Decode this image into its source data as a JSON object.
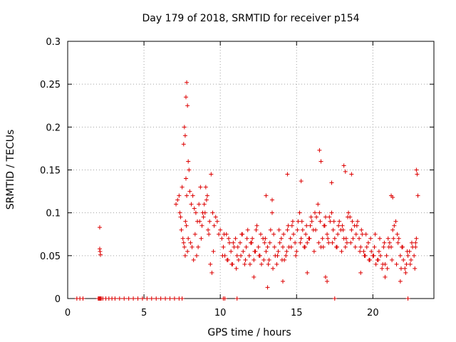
{
  "chart_data": {
    "type": "scatter",
    "title": "Day 179 of 2018, SRMTID for receiver p154",
    "xlabel": "GPS time / hours",
    "ylabel": "SRMTID / TECUs",
    "xlim": [
      0,
      24
    ],
    "ylim": [
      0,
      0.3
    ],
    "x_ticks": [
      0,
      5,
      10,
      15,
      20
    ],
    "x_tick_labels": [
      "0",
      "5",
      "10",
      "15",
      "20"
    ],
    "y_ticks": [
      0,
      0.05,
      0.1,
      0.15,
      0.2,
      0.25,
      0.3
    ],
    "y_tick_labels": [
      "0",
      "0.05",
      "0.1",
      "0.15",
      "0.2",
      "0.25",
      "0.3"
    ],
    "grid": true,
    "marker": "+",
    "color": "#dd0000",
    "series": [
      {
        "name": "SRMTID",
        "x": [
          0.6,
          0.8,
          1.0,
          2.0,
          2.05,
          2.1,
          2.15,
          2.2,
          2.3,
          2.5,
          2.7,
          2.9,
          3.1,
          3.4,
          3.7,
          4.0,
          4.3,
          4.6,
          4.9,
          5.2,
          5.5,
          5.8,
          6.1,
          6.4,
          6.7,
          7.0,
          7.3,
          7.5,
          10.2,
          10.3,
          11.1,
          17.5,
          22.3,
          2.1,
          2.1,
          2.12,
          2.15,
          7.1,
          7.2,
          7.3,
          7.4,
          7.5,
          7.6,
          7.65,
          7.7,
          7.75,
          7.8,
          7.85,
          7.9,
          7.95,
          8.0,
          8.1,
          8.2,
          8.3,
          8.4,
          8.5,
          8.6,
          8.7,
          8.8,
          8.9,
          9.0,
          9.1,
          9.2,
          9.3,
          9.4,
          9.5,
          9.6,
          9.7,
          9.8,
          9.9,
          10.0,
          7.35,
          7.45,
          7.55,
          7.6,
          7.65,
          7.7,
          7.72,
          7.75,
          7.78,
          7.8,
          7.85,
          7.9,
          8.05,
          8.15,
          8.25,
          8.35,
          8.45,
          8.55,
          8.65,
          8.75,
          8.85,
          8.95,
          9.05,
          9.15,
          9.25,
          9.35,
          9.45,
          9.55,
          10.1,
          10.2,
          10.3,
          10.4,
          10.5,
          10.6,
          10.7,
          10.8,
          10.9,
          11.0,
          11.1,
          11.2,
          11.3,
          11.4,
          11.5,
          11.6,
          11.7,
          11.8,
          11.9,
          12.0,
          12.1,
          12.2,
          12.3,
          12.4,
          12.5,
          12.6,
          12.7,
          12.8,
          12.9,
          13.0,
          13.1,
          13.2,
          13.3,
          13.4,
          13.5,
          13.6,
          13.7,
          13.8,
          13.9,
          14.0,
          14.1,
          14.2,
          14.3,
          14.4,
          14.5,
          14.6,
          14.7,
          14.8,
          14.9,
          15.0,
          15.1,
          15.2,
          15.3,
          15.4,
          15.5,
          15.6,
          15.7,
          15.8,
          15.9,
          16.0,
          16.1,
          16.2,
          16.3,
          16.4,
          16.5,
          16.6,
          16.7,
          16.8,
          16.9,
          17.0,
          17.1,
          17.2,
          17.3,
          17.4,
          17.5,
          17.6,
          17.7,
          17.8,
          17.9,
          18.0,
          18.1,
          18.2,
          18.3,
          18.4,
          18.5,
          18.6,
          18.7,
          18.8,
          18.9,
          19.0,
          19.1,
          19.2,
          19.3,
          19.4,
          19.5,
          19.6,
          19.7,
          19.8,
          19.9,
          20.0,
          20.1,
          20.2,
          20.3,
          20.4,
          20.5,
          20.6,
          20.7,
          20.8,
          20.9,
          21.0,
          21.1,
          21.2,
          21.3,
          21.4,
          21.5,
          21.6,
          21.7,
          21.8,
          21.9,
          22.0,
          22.1,
          22.2,
          22.3,
          22.4,
          22.5,
          22.6,
          22.7,
          22.8,
          22.85,
          10.15,
          10.45,
          10.75,
          11.05,
          11.35,
          11.65,
          11.95,
          12.25,
          12.55,
          12.85,
          13.15,
          13.45,
          13.75,
          14.05,
          14.35,
          14.65,
          14.95,
          15.25,
          15.55,
          15.85,
          16.15,
          16.45,
          16.75,
          17.05,
          17.35,
          17.65,
          17.95,
          18.25,
          18.55,
          18.85,
          19.15,
          19.45,
          19.75,
          20.05,
          20.35,
          20.65,
          20.95,
          21.25,
          21.55,
          21.85,
          22.15,
          22.45,
          22.75,
          10.25,
          10.55,
          10.85,
          11.15,
          11.45,
          11.75,
          12.05,
          12.35,
          12.65,
          12.95,
          13.25,
          13.55,
          13.85,
          14.15,
          14.45,
          14.75,
          15.05,
          15.35,
          15.65,
          15.95,
          16.25,
          16.55,
          16.85,
          17.15,
          17.45,
          17.75,
          18.05,
          18.35,
          18.65,
          18.95,
          19.25,
          19.55,
          19.85,
          20.15,
          20.45,
          20.75,
          21.05,
          21.35,
          21.65,
          21.95,
          22.25,
          22.55,
          22.8,
          13.0,
          13.4,
          14.4,
          15.3,
          16.5,
          16.6,
          17.3,
          18.1,
          18.2,
          18.6,
          21.2,
          21.3,
          22.85,
          22.9,
          22.95,
          12.2,
          13.1,
          14.1,
          15.7,
          16.9,
          17.0,
          19.2,
          20.8,
          21.8
        ],
        "y": [
          0,
          0,
          0,
          0,
          0,
          0,
          0,
          0,
          0,
          0,
          0,
          0,
          0,
          0,
          0,
          0,
          0,
          0,
          0,
          0,
          0,
          0,
          0,
          0,
          0,
          0,
          0,
          0,
          0,
          0,
          0,
          0,
          0,
          0.083,
          0.058,
          0.055,
          0.051,
          0.11,
          0.115,
          0.12,
          0.095,
          0.13,
          0.18,
          0.2,
          0.19,
          0.235,
          0.252,
          0.225,
          0.16,
          0.15,
          0.125,
          0.11,
          0.12,
          0.105,
          0.1,
          0.09,
          0.11,
          0.13,
          0.085,
          0.095,
          0.1,
          0.115,
          0.08,
          0.09,
          0.145,
          0.1,
          0.085,
          0.095,
          0.09,
          0.075,
          0.08,
          0.1,
          0.08,
          0.07,
          0.065,
          0.06,
          0.05,
          0.09,
          0.14,
          0.085,
          0.12,
          0.055,
          0.07,
          0.065,
          0.06,
          0.045,
          0.075,
          0.05,
          0.06,
          0.09,
          0.07,
          0.1,
          0.11,
          0.13,
          0.12,
          0.075,
          0.04,
          0.03,
          0.055,
          0.07,
          0.06,
          0.05,
          0.075,
          0.045,
          0.065,
          0.055,
          0.04,
          0.06,
          0.07,
          0.05,
          0.045,
          0.065,
          0.075,
          0.055,
          0.04,
          0.06,
          0.08,
          0.05,
          0.065,
          0.07,
          0.045,
          0.055,
          0.085,
          0.06,
          0.05,
          0.04,
          0.07,
          0.065,
          0.055,
          0.06,
          0.045,
          0.08,
          0.1,
          0.075,
          0.05,
          0.04,
          0.055,
          0.065,
          0.07,
          0.06,
          0.045,
          0.05,
          0.08,
          0.06,
          0.07,
          0.085,
          0.075,
          0.065,
          0.055,
          0.09,
          0.1,
          0.07,
          0.08,
          0.06,
          0.075,
          0.065,
          0.07,
          0.085,
          0.09,
          0.08,
          0.1,
          0.095,
          0.11,
          0.1,
          0.06,
          0.07,
          0.085,
          0.095,
          0.075,
          0.065,
          0.09,
          0.1,
          0.08,
          0.07,
          0.06,
          0.075,
          0.09,
          0.08,
          0.085,
          0.07,
          0.06,
          0.065,
          0.1,
          0.095,
          0.08,
          0.07,
          0.085,
          0.075,
          0.09,
          0.07,
          0.06,
          0.075,
          0.055,
          0.05,
          0.06,
          0.065,
          0.045,
          0.055,
          0.05,
          0.06,
          0.04,
          0.045,
          0.055,
          0.05,
          0.035,
          0.06,
          0.04,
          0.05,
          0.07,
          0.065,
          0.06,
          0.08,
          0.085,
          0.09,
          0.075,
          0.07,
          0.05,
          0.06,
          0.045,
          0.035,
          0.04,
          0.05,
          0.055,
          0.045,
          0.06,
          0.05,
          0.065,
          0.07,
          0.05,
          0.045,
          0.04,
          0.035,
          0.05,
          0.045,
          0.04,
          0.055,
          0.05,
          0.045,
          0.04,
          0.035,
          0.05,
          0.045,
          0.055,
          0.06,
          0.05,
          0.065,
          0.06,
          0.07,
          0.055,
          0.065,
          0.06,
          0.07,
          0.065,
          0.06,
          0.055,
          0.07,
          0.065,
          0.06,
          0.055,
          0.05,
          0.045,
          0.05,
          0.045,
          0.04,
          0.035,
          0.045,
          0.04,
          0.035,
          0.03,
          0.04,
          0.035,
          0.075,
          0.07,
          0.065,
          0.06,
          0.075,
          0.07,
          0.065,
          0.08,
          0.075,
          0.07,
          0.065,
          0.06,
          0.08,
          0.075,
          0.085,
          0.09,
          0.08,
          0.09,
          0.085,
          0.095,
          0.08,
          0.09,
          0.085,
          0.095,
          0.09,
          0.085,
          0.08,
          0.095,
          0.09,
          0.085,
          0.08,
          0.075,
          0.07,
          0.075,
          0.07,
          0.065,
          0.06,
          0.07,
          0.065,
          0.06,
          0.055,
          0.065,
          0.06,
          0.12,
          0.115,
          0.145,
          0.137,
          0.173,
          0.16,
          0.135,
          0.155,
          0.148,
          0.145,
          0.12,
          0.118,
          0.15,
          0.145,
          0.12,
          0.025,
          0.013,
          0.02,
          0.03,
          0.025,
          0.02,
          0.03,
          0.025,
          0.02
        ]
      }
    ]
  }
}
